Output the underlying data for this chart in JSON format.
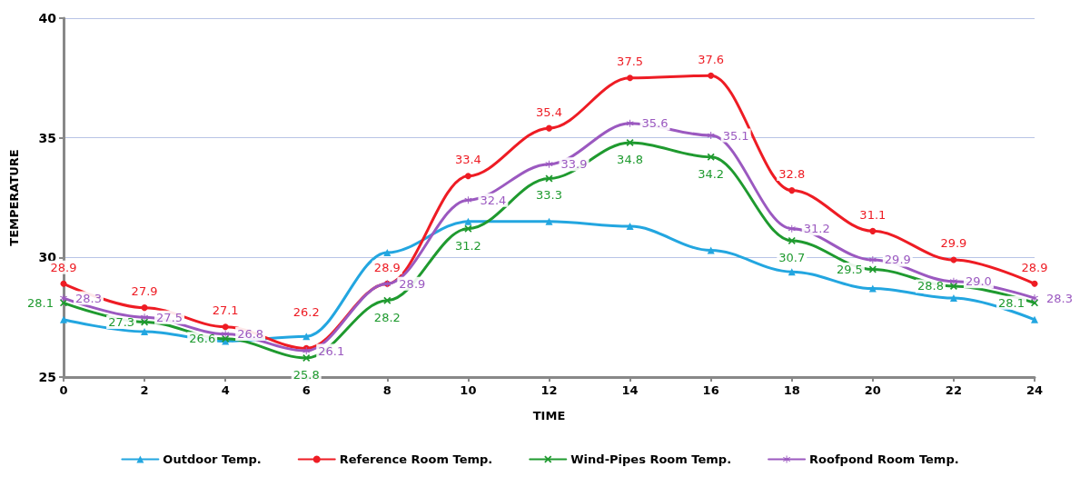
{
  "chart_data": {
    "type": "line",
    "xlabel": "TIME",
    "ylabel": "TEMPERATURE",
    "x": [
      0,
      2,
      4,
      6,
      8,
      10,
      12,
      14,
      16,
      18,
      20,
      22,
      24
    ],
    "xlim": [
      0,
      24
    ],
    "xticks": [
      0,
      2,
      4,
      6,
      8,
      10,
      12,
      14,
      16,
      18,
      20,
      22,
      24
    ],
    "ylim": [
      25,
      40
    ],
    "yticks": [
      25,
      30,
      35,
      40
    ],
    "grid": "y",
    "legend": "bottom",
    "line_style": "solid",
    "series": [
      {
        "name": "Outdoor Temp.",
        "color": "#23a6e0",
        "marker": "triangle",
        "values": [
          27.4,
          26.9,
          26.5,
          26.7,
          30.2,
          31.5,
          31.5,
          31.3,
          30.3,
          29.4,
          28.7,
          28.3,
          27.4
        ]
      },
      {
        "name": "Reference Room Temp.",
        "color": "#ee1c24",
        "marker": "circle",
        "values": [
          28.9,
          27.9,
          27.1,
          26.2,
          28.9,
          33.4,
          35.4,
          37.5,
          37.6,
          32.8,
          31.1,
          29.9,
          28.9
        ],
        "value_labels": [
          "28.9",
          "27.9",
          "27.1",
          "26.2",
          "28.9",
          "33.4",
          "35.4",
          "37.5",
          "37.6",
          "32.8",
          "31.1",
          "29.9",
          "28.9"
        ]
      },
      {
        "name": "Wind-Pipes Room Temp.",
        "color": "#1f9a2f",
        "marker": "cross",
        "values": [
          28.1,
          27.3,
          26.6,
          25.8,
          28.2,
          31.2,
          33.3,
          34.8,
          34.2,
          30.7,
          29.5,
          28.8,
          28.1
        ],
        "value_labels": [
          "28.1",
          "27.3",
          "26.6",
          "25.8",
          "28.2",
          "31.2",
          "33.3",
          "34.8",
          "34.2",
          "30.7",
          "29.5",
          "28.8",
          "28.1"
        ]
      },
      {
        "name": "Roofpond Room Temp.",
        "color": "#9b59c0",
        "marker": "star",
        "values": [
          28.3,
          27.5,
          26.8,
          26.1,
          28.9,
          32.4,
          33.9,
          35.6,
          35.1,
          31.2,
          29.9,
          29.0,
          28.3
        ],
        "value_labels": [
          "28.3",
          "27.5",
          "26.8",
          "26.1",
          "28.9",
          "32.4",
          "33.9",
          "35.6",
          "35.1",
          "31.2",
          "29.9",
          "29.0",
          "28.3"
        ]
      }
    ]
  }
}
